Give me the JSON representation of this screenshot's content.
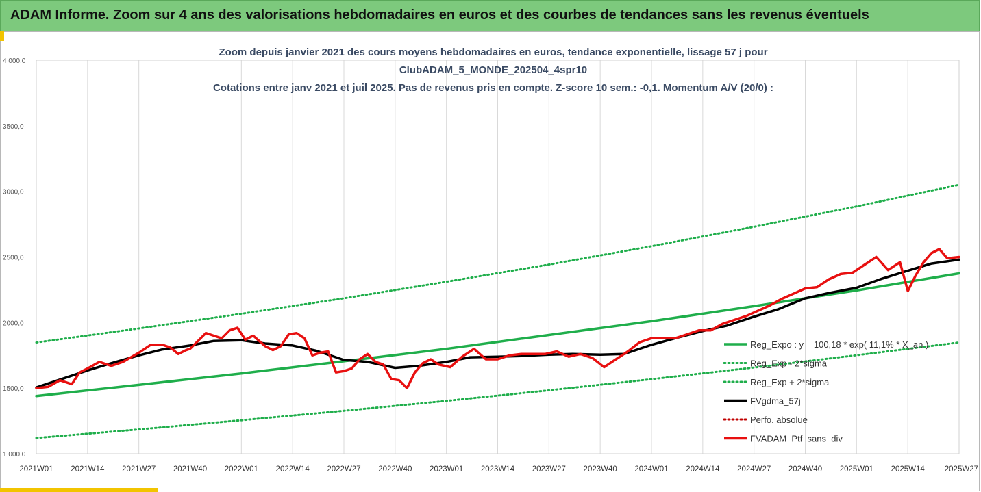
{
  "header": {
    "banner_title": "ADAM Informe. Zoom sur 4 ans des valorisations hebdomadaires en euros et des courbes de tendances sans les revenus éventuels"
  },
  "chart_data": {
    "type": "line",
    "title_lines": [
      "Zoom depuis janvier 2021 des cours moyens hebdomadaires  en euros, tendance exponentielle, lissage 57 j pour",
      "ClubADAM_5_MONDE_202504_4spr10",
      "Cotations entre janv 2021 et juil 2025. Pas de revenus pris en compte. Z-score 10 sem.: -0,1. Momentum A/V (20/0) :"
    ],
    "ylim": [
      1000,
      4000
    ],
    "yticks": [
      1000,
      1500,
      2000,
      2500,
      3000,
      3500,
      4000
    ],
    "ytick_labels": [
      "1 000,0",
      "1500,0",
      "2000,0",
      "2500,0",
      "3000,0",
      "3500,0",
      "4 000,0"
    ],
    "x_range_weeks": [
      0,
      234
    ],
    "xticks": [
      0,
      13,
      26,
      39,
      52,
      65,
      78,
      91,
      104,
      117,
      130,
      143,
      156,
      169,
      182,
      195,
      208,
      221,
      234
    ],
    "xtick_labels": [
      "2021W01",
      "2021W14",
      "2021W27",
      "2021W40",
      "2022W01",
      "2022W14",
      "2022W27",
      "2022W40",
      "2023W01",
      "2023W14",
      "2023W27",
      "2023W40",
      "2024W01",
      "2024W14",
      "2024W27",
      "2024W40",
      "2025W01",
      "2025W14",
      "2025W27"
    ],
    "grid": "vertical",
    "legend_position": "bottom-right",
    "series": [
      {
        "name": "Reg_Expo : y = 100,18 * exp( 11,1% * X_an )",
        "color": "#1fae4b",
        "style": "solid",
        "x": [
          0,
          26,
          52,
          78,
          104,
          130,
          156,
          182,
          208,
          234
        ],
        "y": [
          1440,
          1525,
          1612,
          1705,
          1800,
          1905,
          2010,
          2125,
          2245,
          2375
        ]
      },
      {
        "name": "Reg_Exp - 2*sigma",
        "color": "#1fae4b",
        "style": "dotted",
        "x": [
          0,
          26,
          52,
          78,
          104,
          130,
          156,
          182,
          208,
          234
        ],
        "y": [
          1120,
          1185,
          1255,
          1327,
          1403,
          1483,
          1568,
          1657,
          1751,
          1848
        ]
      },
      {
        "name": "Reg_Exp + 2*sigma",
        "color": "#1fae4b",
        "style": "dotted",
        "x": [
          0,
          26,
          52,
          78,
          104,
          130,
          156,
          182,
          208,
          234
        ],
        "y": [
          1848,
          1955,
          2067,
          2185,
          2311,
          2442,
          2582,
          2730,
          2885,
          3050
        ]
      },
      {
        "name": "FVgdma_57j",
        "color": "#000000",
        "style": "solid",
        "x": [
          0,
          6,
          13,
          19,
          26,
          32,
          39,
          45,
          52,
          58,
          65,
          71,
          78,
          84,
          91,
          97,
          104,
          110,
          117,
          123,
          130,
          136,
          143,
          149,
          156,
          162,
          169,
          175,
          182,
          188,
          195,
          201,
          208,
          214,
          221,
          227,
          234
        ],
        "y": [
          1505,
          1565,
          1635,
          1690,
          1750,
          1795,
          1825,
          1860,
          1865,
          1840,
          1825,
          1785,
          1715,
          1700,
          1655,
          1670,
          1700,
          1735,
          1740,
          1745,
          1755,
          1760,
          1755,
          1760,
          1830,
          1880,
          1935,
          1975,
          2045,
          2100,
          2185,
          2225,
          2265,
          2330,
          2395,
          2450,
          2480
        ]
      },
      {
        "name": "Perfo. absolue",
        "color": "#c00000",
        "style": "dotted",
        "x": [],
        "y": []
      },
      {
        "name": "FVADAM_Ptf_sans_div",
        "color": "#e81010",
        "style": "solid",
        "x": [
          0,
          3,
          6,
          9,
          11,
          13,
          16,
          19,
          22,
          26,
          29,
          32,
          34,
          36,
          38,
          39,
          41,
          43,
          45,
          47,
          49,
          51,
          53,
          55,
          58,
          60,
          62,
          64,
          66,
          68,
          70,
          72,
          74,
          76,
          78,
          80,
          82,
          84,
          86,
          88,
          90,
          92,
          94,
          96,
          98,
          100,
          102,
          105,
          108,
          111,
          114,
          117,
          120,
          123,
          126,
          129,
          132,
          135,
          138,
          141,
          144,
          147,
          150,
          153,
          156,
          159,
          162,
          165,
          168,
          171,
          174,
          177,
          180,
          183,
          186,
          189,
          192,
          195,
          198,
          201,
          204,
          207,
          210,
          213,
          216,
          219,
          221,
          223,
          225,
          227,
          229,
          231,
          234
        ],
        "y": [
          1500,
          1510,
          1560,
          1530,
          1620,
          1650,
          1700,
          1670,
          1700,
          1770,
          1830,
          1830,
          1810,
          1760,
          1790,
          1800,
          1860,
          1920,
          1900,
          1880,
          1940,
          1960,
          1870,
          1900,
          1820,
          1790,
          1820,
          1910,
          1920,
          1880,
          1750,
          1770,
          1780,
          1620,
          1630,
          1650,
          1720,
          1760,
          1700,
          1680,
          1570,
          1560,
          1500,
          1620,
          1690,
          1720,
          1680,
          1660,
          1740,
          1800,
          1720,
          1720,
          1750,
          1760,
          1760,
          1760,
          1780,
          1740,
          1760,
          1730,
          1660,
          1720,
          1780,
          1850,
          1880,
          1880,
          1880,
          1910,
          1940,
          1940,
          1990,
          2020,
          2050,
          2090,
          2130,
          2180,
          2220,
          2260,
          2270,
          2330,
          2370,
          2380,
          2440,
          2500,
          2400,
          2460,
          2240,
          2360,
          2460,
          2530,
          2560,
          2490,
          2500
        ]
      }
    ]
  }
}
